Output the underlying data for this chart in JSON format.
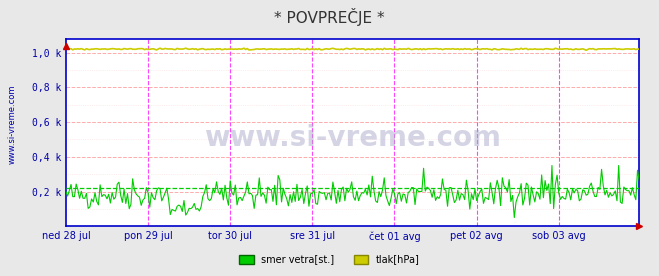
{
  "title": "* POVPREČJE *",
  "title_color": "#333333",
  "bg_color": "#ffffff",
  "plot_bg_color": "#ffffff",
  "ylabel_text": "www.si-vreme.com",
  "xlabel_labels": [
    "ned 28 jul",
    "pon 29 jul",
    "tor 30 jul",
    "sre 31 jul",
    "čet 01 avg",
    "pet 02 avg",
    "sob 03 avg"
  ],
  "yticks": [
    0,
    0.2,
    0.4,
    0.6,
    0.8,
    1.0
  ],
  "ytick_labels": [
    "",
    "0,2 k",
    "0,4 k",
    "0,6 k",
    "0,8 k",
    "1,0 k"
  ],
  "ylim": [
    0,
    1.08
  ],
  "grid_color_major": "#ffaaaa",
  "grid_color_minor": "#ffdddd",
  "vline_color": "#ff44ff",
  "spine_color": "#0000cc",
  "wind_dir_color": "#00cc00",
  "wind_dir_avg_color": "#00cc00",
  "pressure_color": "#cccc00",
  "legend_items": [
    {
      "label": "smer vetra[st.]",
      "color": "#00cc00"
    },
    {
      "label": "tlak[hPa]",
      "color": "#cccc00"
    }
  ],
  "n_points": 336,
  "wind_dir_mean": 0.22,
  "pressure_value": 1.02,
  "x_ticks_pos": [
    0,
    48,
    96,
    144,
    192,
    240,
    288
  ],
  "vline_positions": [
    48,
    96,
    144,
    192,
    240,
    288
  ]
}
